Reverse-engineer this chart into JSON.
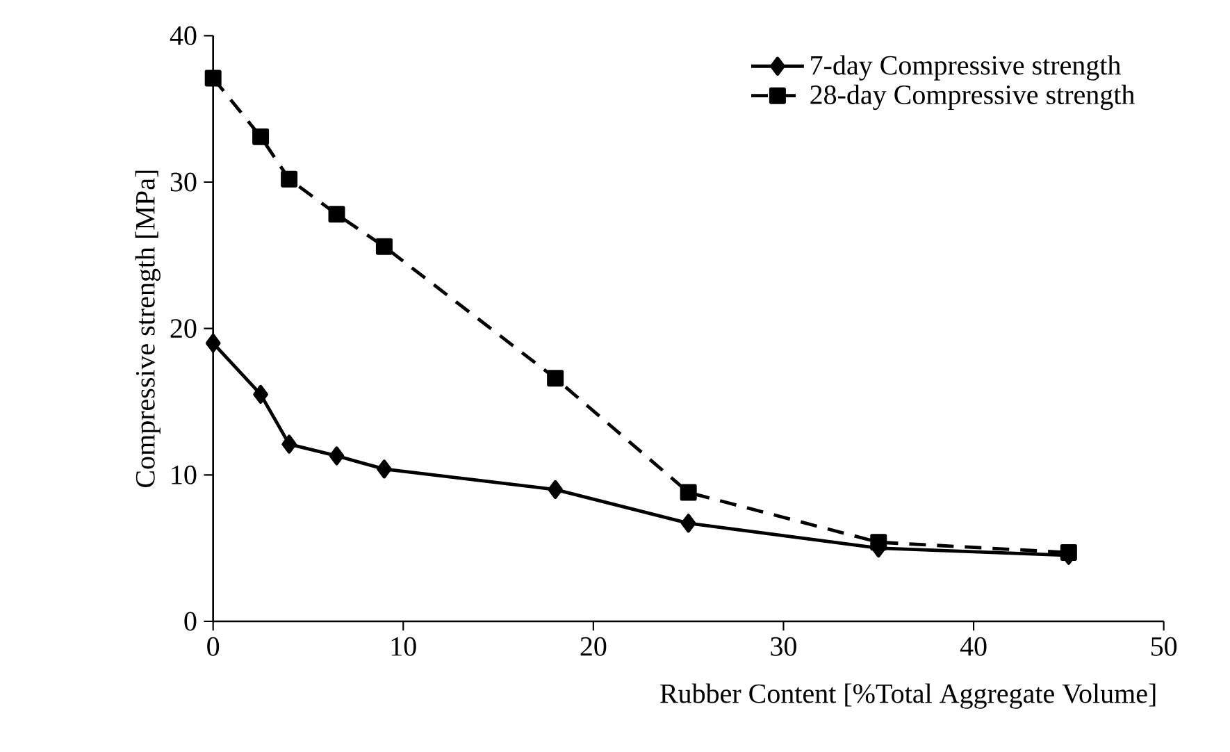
{
  "chart_data": {
    "type": "line",
    "xlabel": "Rubber Content  [%Total Aggregate Volume]",
    "ylabel": "Compressive strength [MPa]",
    "x": [
      0,
      2.5,
      4,
      6.5,
      9,
      18,
      25,
      35,
      45
    ],
    "series": [
      {
        "name": "7-day Compressive strength",
        "color": "#000000",
        "marker": "diamond",
        "line_style": "solid",
        "values": [
          19.0,
          15.5,
          12.1,
          11.3,
          10.4,
          9.0,
          6.7,
          5.0,
          4.5
        ]
      },
      {
        "name": "28-day Compressive strength",
        "color": "#000000",
        "marker": "square",
        "line_style": "dashed",
        "values": [
          37.1,
          33.1,
          30.2,
          27.8,
          25.6,
          16.6,
          8.8,
          5.4,
          4.7
        ]
      }
    ],
    "xlim": [
      0,
      50
    ],
    "ylim": [
      0,
      40
    ],
    "xticks": [
      0,
      10,
      20,
      30,
      40,
      50
    ],
    "yticks": [
      0,
      10,
      20,
      30,
      40
    ],
    "grid": false,
    "legend": "top right"
  }
}
